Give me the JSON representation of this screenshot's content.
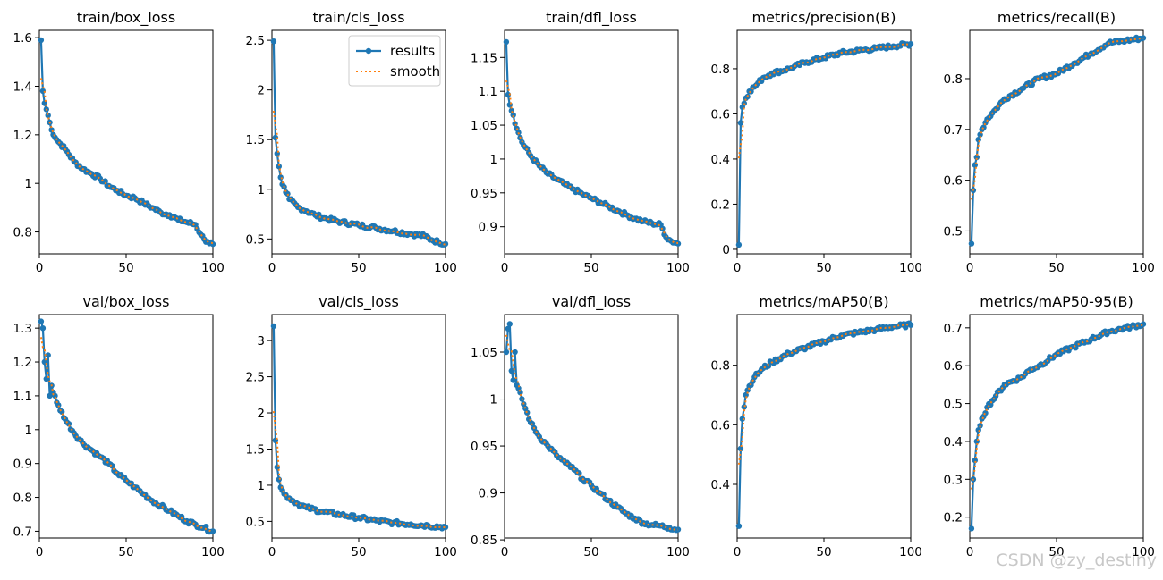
{
  "legend": {
    "results": "results",
    "smooth": "smooth"
  },
  "watermark": "CSDN @zy_destiny",
  "colors": {
    "results": "#1f77b4",
    "smooth": "#ff7f0e"
  },
  "chart_data": [
    {
      "type": "line",
      "title": "train/box_loss",
      "xlim": [
        0,
        100
      ],
      "ylim": [
        0.71,
        1.63
      ],
      "xticks": [
        0,
        50,
        100
      ],
      "yticks": [
        0.8,
        1.0,
        1.2,
        1.4,
        1.6
      ],
      "anchors": [
        [
          1,
          1.59
        ],
        [
          2,
          1.38
        ],
        [
          3,
          1.33
        ],
        [
          5,
          1.28
        ],
        [
          7,
          1.22
        ],
        [
          10,
          1.18
        ],
        [
          15,
          1.14
        ],
        [
          20,
          1.09
        ],
        [
          25,
          1.06
        ],
        [
          30,
          1.04
        ],
        [
          35,
          1.02
        ],
        [
          40,
          0.99
        ],
        [
          45,
          0.97
        ],
        [
          50,
          0.95
        ],
        [
          55,
          0.94
        ],
        [
          60,
          0.92
        ],
        [
          65,
          0.9
        ],
        [
          70,
          0.88
        ],
        [
          75,
          0.87
        ],
        [
          80,
          0.85
        ],
        [
          85,
          0.84
        ],
        [
          90,
          0.83
        ],
        [
          93,
          0.79
        ],
        [
          95,
          0.77
        ],
        [
          97,
          0.76
        ],
        [
          100,
          0.75
        ]
      ]
    },
    {
      "type": "line",
      "title": "train/cls_loss",
      "xlim": [
        0,
        100
      ],
      "ylim": [
        0.35,
        2.6
      ],
      "xticks": [
        0,
        50,
        100
      ],
      "yticks": [
        0.5,
        1.0,
        1.5,
        2.0,
        2.5
      ],
      "legend_position": "upper right",
      "anchors": [
        [
          1,
          2.49
        ],
        [
          2,
          1.52
        ],
        [
          3,
          1.36
        ],
        [
          4,
          1.23
        ],
        [
          5,
          1.12
        ],
        [
          6,
          1.05
        ],
        [
          8,
          0.97
        ],
        [
          10,
          0.9
        ],
        [
          15,
          0.82
        ],
        [
          20,
          0.78
        ],
        [
          25,
          0.74
        ],
        [
          30,
          0.71
        ],
        [
          40,
          0.67
        ],
        [
          50,
          0.64
        ],
        [
          60,
          0.61
        ],
        [
          70,
          0.58
        ],
        [
          80,
          0.55
        ],
        [
          88,
          0.53
        ],
        [
          92,
          0.49
        ],
        [
          96,
          0.47
        ],
        [
          100,
          0.45
        ]
      ]
    },
    {
      "type": "line",
      "title": "train/dfl_loss",
      "xlim": [
        0,
        100
      ],
      "ylim": [
        0.86,
        1.19
      ],
      "xticks": [
        0,
        50,
        100
      ],
      "yticks": [
        0.9,
        0.95,
        1.0,
        1.05,
        1.1,
        1.15
      ],
      "anchors": [
        [
          1,
          1.173
        ],
        [
          2,
          1.095
        ],
        [
          3,
          1.08
        ],
        [
          5,
          1.065
        ],
        [
          7,
          1.045
        ],
        [
          10,
          1.025
        ],
        [
          15,
          1.005
        ],
        [
          20,
          0.99
        ],
        [
          25,
          0.978
        ],
        [
          30,
          0.97
        ],
        [
          35,
          0.962
        ],
        [
          40,
          0.955
        ],
        [
          45,
          0.948
        ],
        [
          50,
          0.942
        ],
        [
          55,
          0.936
        ],
        [
          60,
          0.93
        ],
        [
          65,
          0.924
        ],
        [
          70,
          0.918
        ],
        [
          75,
          0.912
        ],
        [
          80,
          0.908
        ],
        [
          85,
          0.905
        ],
        [
          90,
          0.903
        ],
        [
          93,
          0.885
        ],
        [
          96,
          0.879
        ],
        [
          100,
          0.875
        ]
      ]
    },
    {
      "type": "line",
      "title": "metrics/precision(B)",
      "xlim": [
        0,
        100
      ],
      "ylim": [
        -0.02,
        0.97
      ],
      "xticks": [
        0,
        50,
        100
      ],
      "yticks": [
        0.0,
        0.2,
        0.4,
        0.6,
        0.8
      ],
      "anchors": [
        [
          1,
          0.02
        ],
        [
          2,
          0.56
        ],
        [
          3,
          0.63
        ],
        [
          5,
          0.67
        ],
        [
          7,
          0.7
        ],
        [
          10,
          0.72
        ],
        [
          15,
          0.76
        ],
        [
          20,
          0.78
        ],
        [
          30,
          0.8
        ],
        [
          40,
          0.83
        ],
        [
          50,
          0.85
        ],
        [
          60,
          0.87
        ],
        [
          70,
          0.88
        ],
        [
          80,
          0.89
        ],
        [
          90,
          0.9
        ],
        [
          100,
          0.91
        ]
      ]
    },
    {
      "type": "line",
      "title": "metrics/recall(B)",
      "xlim": [
        0,
        100
      ],
      "ylim": [
        0.455,
        0.895
      ],
      "xticks": [
        0,
        50,
        100
      ],
      "yticks": [
        0.5,
        0.6,
        0.7,
        0.8
      ],
      "anchors": [
        [
          1,
          0.475
        ],
        [
          2,
          0.58
        ],
        [
          3,
          0.63
        ],
        [
          4,
          0.645
        ],
        [
          5,
          0.68
        ],
        [
          7,
          0.7
        ],
        [
          10,
          0.72
        ],
        [
          15,
          0.74
        ],
        [
          20,
          0.76
        ],
        [
          30,
          0.78
        ],
        [
          40,
          0.8
        ],
        [
          50,
          0.81
        ],
        [
          60,
          0.83
        ],
        [
          70,
          0.85
        ],
        [
          80,
          0.87
        ],
        [
          90,
          0.875
        ],
        [
          100,
          0.88
        ]
      ]
    },
    {
      "type": "line",
      "title": "val/box_loss",
      "xlim": [
        0,
        100
      ],
      "ylim": [
        0.68,
        1.34
      ],
      "xticks": [
        0,
        50,
        100
      ],
      "yticks": [
        0.7,
        0.8,
        0.9,
        1.0,
        1.1,
        1.2,
        1.3
      ],
      "anchors": [
        [
          1,
          1.32
        ],
        [
          2,
          1.3
        ],
        [
          3,
          1.2
        ],
        [
          4,
          1.15
        ],
        [
          5,
          1.22
        ],
        [
          6,
          1.1
        ],
        [
          7,
          1.13
        ],
        [
          10,
          1.08
        ],
        [
          15,
          1.03
        ],
        [
          20,
          0.99
        ],
        [
          25,
          0.96
        ],
        [
          30,
          0.94
        ],
        [
          35,
          0.92
        ],
        [
          40,
          0.9
        ],
        [
          45,
          0.87
        ],
        [
          50,
          0.85
        ],
        [
          55,
          0.83
        ],
        [
          60,
          0.81
        ],
        [
          65,
          0.79
        ],
        [
          70,
          0.775
        ],
        [
          75,
          0.76
        ],
        [
          80,
          0.745
        ],
        [
          85,
          0.73
        ],
        [
          90,
          0.72
        ],
        [
          95,
          0.71
        ],
        [
          100,
          0.7
        ]
      ]
    },
    {
      "type": "line",
      "title": "val/cls_loss",
      "xlim": [
        0,
        100
      ],
      "ylim": [
        0.27,
        3.36
      ],
      "xticks": [
        0,
        50,
        100
      ],
      "yticks": [
        0.5,
        1.0,
        1.5,
        2.0,
        2.5,
        3.0
      ],
      "anchors": [
        [
          1,
          3.2
        ],
        [
          2,
          1.62
        ],
        [
          3,
          1.25
        ],
        [
          4,
          1.08
        ],
        [
          5,
          0.97
        ],
        [
          7,
          0.88
        ],
        [
          10,
          0.82
        ],
        [
          15,
          0.74
        ],
        [
          20,
          0.69
        ],
        [
          30,
          0.63
        ],
        [
          40,
          0.59
        ],
        [
          50,
          0.55
        ],
        [
          60,
          0.51
        ],
        [
          70,
          0.48
        ],
        [
          80,
          0.46
        ],
        [
          90,
          0.44
        ],
        [
          100,
          0.42
        ]
      ]
    },
    {
      "type": "line",
      "title": "val/dfl_loss",
      "xlim": [
        0,
        100
      ],
      "ylim": [
        0.852,
        1.09
      ],
      "xticks": [
        0,
        50,
        100
      ],
      "yticks": [
        0.85,
        0.9,
        0.95,
        1.0,
        1.05
      ],
      "anchors": [
        [
          1,
          1.05
        ],
        [
          2,
          1.075
        ],
        [
          3,
          1.08
        ],
        [
          4,
          1.03
        ],
        [
          5,
          1.02
        ],
        [
          6,
          1.05
        ],
        [
          7,
          1.015
        ],
        [
          10,
          1.0
        ],
        [
          15,
          0.975
        ],
        [
          20,
          0.96
        ],
        [
          25,
          0.95
        ],
        [
          30,
          0.94
        ],
        [
          35,
          0.932
        ],
        [
          40,
          0.925
        ],
        [
          45,
          0.915
        ],
        [
          50,
          0.908
        ],
        [
          55,
          0.9
        ],
        [
          60,
          0.892
        ],
        [
          65,
          0.885
        ],
        [
          70,
          0.878
        ],
        [
          75,
          0.873
        ],
        [
          80,
          0.868
        ],
        [
          85,
          0.866
        ],
        [
          90,
          0.865
        ],
        [
          95,
          0.863
        ],
        [
          100,
          0.861
        ]
      ]
    },
    {
      "type": "line",
      "title": "metrics/mAP50(B)",
      "xlim": [
        0,
        100
      ],
      "ylim": [
        0.22,
        0.97
      ],
      "xticks": [
        0,
        50,
        100
      ],
      "yticks": [
        0.4,
        0.6,
        0.8
      ],
      "anchors": [
        [
          1,
          0.26
        ],
        [
          2,
          0.52
        ],
        [
          3,
          0.62
        ],
        [
          4,
          0.66
        ],
        [
          5,
          0.7
        ],
        [
          7,
          0.73
        ],
        [
          10,
          0.76
        ],
        [
          15,
          0.79
        ],
        [
          20,
          0.81
        ],
        [
          30,
          0.84
        ],
        [
          40,
          0.86
        ],
        [
          50,
          0.88
        ],
        [
          60,
          0.9
        ],
        [
          70,
          0.91
        ],
        [
          80,
          0.92
        ],
        [
          90,
          0.93
        ],
        [
          100,
          0.935
        ]
      ]
    },
    {
      "type": "line",
      "title": "metrics/mAP50-95(B)",
      "xlim": [
        0,
        100
      ],
      "ylim": [
        0.145,
        0.735
      ],
      "xticks": [
        0,
        50,
        100
      ],
      "yticks": [
        0.2,
        0.3,
        0.4,
        0.5,
        0.6,
        0.7
      ],
      "anchors": [
        [
          1,
          0.17
        ],
        [
          2,
          0.3
        ],
        [
          3,
          0.35
        ],
        [
          4,
          0.4
        ],
        [
          5,
          0.43
        ],
        [
          7,
          0.46
        ],
        [
          10,
          0.49
        ],
        [
          15,
          0.52
        ],
        [
          20,
          0.55
        ],
        [
          25,
          0.56
        ],
        [
          30,
          0.57
        ],
        [
          35,
          0.59
        ],
        [
          40,
          0.6
        ],
        [
          50,
          0.63
        ],
        [
          60,
          0.65
        ],
        [
          70,
          0.67
        ],
        [
          80,
          0.69
        ],
        [
          90,
          0.7
        ],
        [
          100,
          0.71
        ]
      ]
    }
  ]
}
